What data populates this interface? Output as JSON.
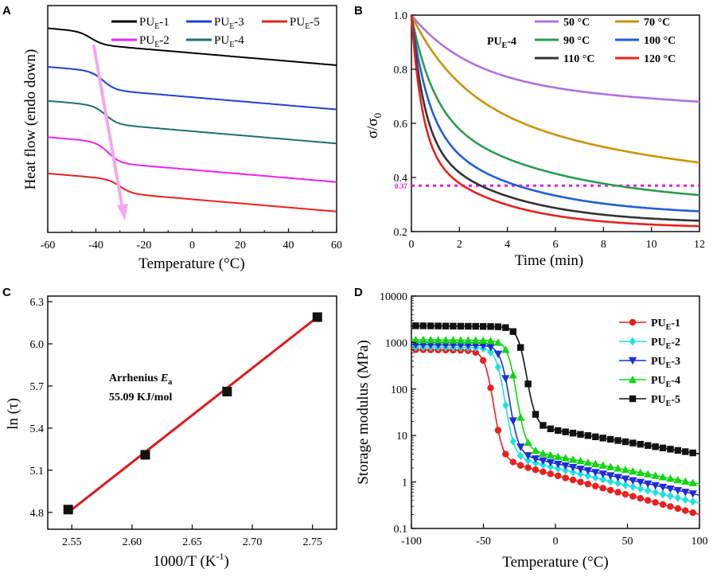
{
  "panels": {
    "A": {
      "letter": "A",
      "chart_data": {
        "type": "line",
        "xlabel": "Temperature (°C)",
        "ylabel": "Heat flow (endo down)",
        "xlim": [
          -60,
          60
        ],
        "xticks": [
          "-60",
          "-40",
          "-20",
          "0",
          "20",
          "40",
          "60"
        ],
        "yticks_shown": false,
        "series": [
          {
            "name": "PU",
            "sub": "E",
            "suffix": "-1",
            "color": "#000000",
            "tg": -42,
            "offset": 0.9,
            "step": 0.055
          },
          {
            "name": "PU",
            "sub": "E",
            "suffix": "-3",
            "color": "#1f3fd6",
            "tg": -37,
            "offset": 0.73,
            "step": 0.08
          },
          {
            "name": "PU",
            "sub": "E",
            "suffix": "-4",
            "color": "#1f6f6f",
            "tg": -36,
            "offset": 0.58,
            "step": 0.08
          },
          {
            "name": "PU",
            "sub": "E",
            "suffix": "-2",
            "color": "#ee22ee",
            "tg": -35,
            "offset": 0.42,
            "step": 0.09
          },
          {
            "name": "PU",
            "sub": "E",
            "suffix": "-5",
            "color": "#e8211e",
            "tg": -30,
            "offset": 0.26,
            "step": 0.06
          }
        ]
      }
    },
    "B": {
      "letter": "B",
      "annotation": "0.37",
      "title": "PU",
      "title_sub": "E",
      "title_suffix": "-4",
      "chart_data": {
        "type": "line",
        "xlabel": "Time (min)",
        "ylabel": "σ/σ",
        "ylabel_sub": "0",
        "xlim": [
          0,
          12
        ],
        "ylim": [
          0.2,
          1.0
        ],
        "xticks": [
          "0",
          "2",
          "4",
          "6",
          "8",
          "10",
          "12"
        ],
        "yticks": [
          "0.2",
          "0.4",
          "0.6",
          "0.8",
          "1.0"
        ],
        "reference_line": 0.37,
        "series": [
          {
            "name": "50 °C",
            "color": "#b070e0",
            "end": 0.68
          },
          {
            "name": "70 °C",
            "color": "#c8940a",
            "end": 0.455
          },
          {
            "name": "90 °C",
            "color": "#2e9a52",
            "end": 0.335
          },
          {
            "name": "100 °C",
            "color": "#1f5fd6",
            "end": 0.275
          },
          {
            "name": "110 °C",
            "color": "#333333",
            "end": 0.24
          },
          {
            "name": "120 °C",
            "color": "#e8211e",
            "end": 0.22
          }
        ]
      }
    },
    "C": {
      "letter": "C",
      "annotation_line1": "Arrhenius ",
      "annotation_ea": "E",
      "annotation_ea_sub": "a",
      "annotation_line2": "55.09 KJ/mol",
      "chart_data": {
        "type": "scatter",
        "xlabel": "1000/T (K",
        "xlabel_sup": "-1",
        "xlabel_close": ")",
        "ylabel": "ln (τ)",
        "xlim": [
          2.53,
          2.77
        ],
        "ylim": [
          4.68,
          6.34
        ],
        "xticks": [
          "2.55",
          "2.60",
          "2.65",
          "2.70",
          "2.75"
        ],
        "yticks": [
          "4.8",
          "5.1",
          "5.4",
          "5.7",
          "6.0",
          "6.3"
        ],
        "points": [
          [
            2.547,
            4.82
          ],
          [
            2.611,
            5.21
          ],
          [
            2.679,
            5.66
          ],
          [
            2.754,
            6.19
          ]
        ],
        "fit": [
          [
            2.547,
            4.8
          ],
          [
            2.754,
            6.19
          ]
        ]
      }
    },
    "D": {
      "letter": "D",
      "chart_data": {
        "type": "scatter",
        "xlabel": "Temperature (°C)",
        "ylabel": "Storage modulus (MPa)",
        "xlim": [
          -100,
          100
        ],
        "ylim_log": [
          0.1,
          10000
        ],
        "xticks": [
          "-100",
          "-50",
          "0",
          "50",
          "100"
        ],
        "yticks": [
          "0.1",
          "1",
          "10",
          "100",
          "1000",
          "10000"
        ],
        "series": [
          {
            "name": "PU",
            "sub": "E",
            "suffix": "-1",
            "color": "#e8211e",
            "marker": "circle",
            "glassy": 700,
            "tg": -43,
            "rubber_at0": 1.4,
            "rubber_end": 0.2
          },
          {
            "name": "PU",
            "sub": "E",
            "suffix": "-2",
            "color": "#1fe0e0",
            "marker": "diamond",
            "glassy": 800,
            "tg": -35,
            "rubber_at0": 2.0,
            "rubber_end": 0.35
          },
          {
            "name": "PU",
            "sub": "E",
            "suffix": "-3",
            "color": "#1f2ed6",
            "marker": "tri-down",
            "glassy": 900,
            "tg": -32,
            "rubber_at0": 2.5,
            "rubber_end": 0.52
          },
          {
            "name": "PU",
            "sub": "E",
            "suffix": "-4",
            "color": "#11d611",
            "marker": "tri-up",
            "glassy": 1150,
            "tg": -27,
            "rubber_at0": 3.6,
            "rubber_end": 0.9
          },
          {
            "name": "PU",
            "sub": "E",
            "suffix": "-5",
            "color": "#111111",
            "marker": "square",
            "glassy": 2300,
            "tg": -20,
            "rubber_at0": 13,
            "rubber_end": 4.0
          }
        ]
      }
    }
  }
}
